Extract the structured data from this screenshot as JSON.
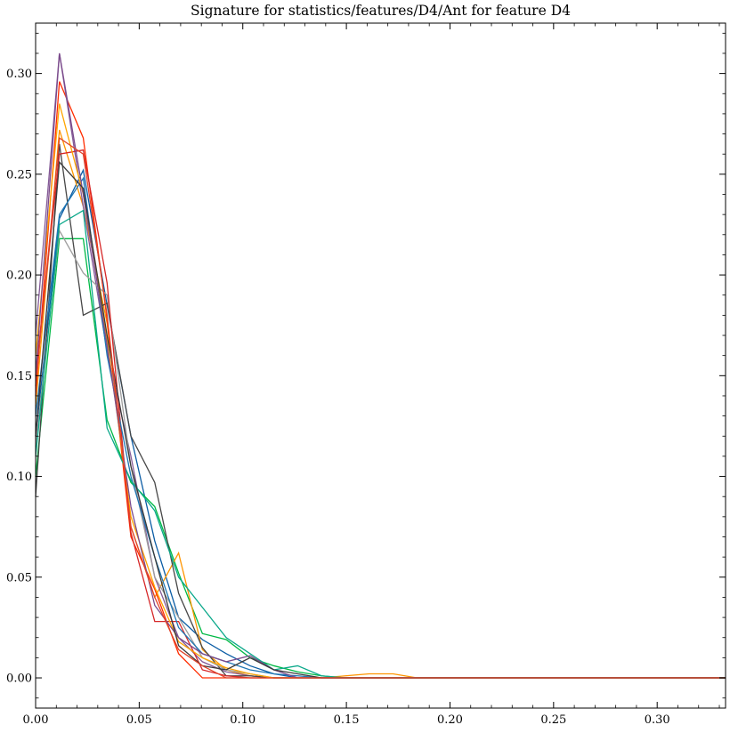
{
  "chart_data": {
    "type": "line",
    "title": "Signature for statistics/features/D4/Ant for feature D4",
    "xlabel": "",
    "ylabel": "",
    "xlim": [
      0.0,
      0.333
    ],
    "ylim": [
      -0.015,
      0.325
    ],
    "grid": false,
    "legend": "none",
    "x_ticks": [
      0.0,
      0.05,
      0.1,
      0.15,
      0.2,
      0.25,
      0.3
    ],
    "x_tick_labels": [
      "0.00",
      "0.05",
      "0.10",
      "0.15",
      "0.20",
      "0.25",
      "0.30"
    ],
    "y_ticks": [
      0.0,
      0.05,
      0.1,
      0.15,
      0.2,
      0.25,
      0.3
    ],
    "y_tick_labels": [
      "0.00",
      "0.05",
      "0.10",
      "0.15",
      "0.20",
      "0.25",
      "0.30"
    ],
    "x": [
      0.0,
      0.0115,
      0.023,
      0.0345,
      0.046,
      0.0575,
      0.069,
      0.0805,
      0.092,
      0.1035,
      0.115,
      0.1265,
      0.138,
      0.1495,
      0.161,
      0.1725,
      0.184,
      0.333
    ],
    "series": [
      {
        "color": "#0c5da5",
        "values": [
          0.12,
          0.228,
          0.252,
          0.185,
          0.12,
          0.068,
          0.03,
          0.019,
          0.012,
          0.006,
          0.002,
          0.0,
          0.0,
          0.0,
          0.0,
          0.0,
          0.0,
          0.0
        ]
      },
      {
        "color": "#00b945",
        "values": [
          0.1,
          0.218,
          0.218,
          0.128,
          0.097,
          0.085,
          0.052,
          0.022,
          0.019,
          0.01,
          0.006,
          0.003,
          0.001,
          0.0,
          0.0,
          0.0,
          0.0,
          0.0
        ]
      },
      {
        "color": "#ff9500",
        "values": [
          0.135,
          0.272,
          0.234,
          0.176,
          0.075,
          0.04,
          0.062,
          0.014,
          0.004,
          0.001,
          0.0,
          0.0,
          0.0,
          0.001,
          0.002,
          0.002,
          0.0,
          0.0
        ]
      },
      {
        "color": "#ff2c00",
        "values": [
          0.14,
          0.296,
          0.268,
          0.178,
          0.07,
          0.044,
          0.012,
          0.0,
          0.0,
          0.0,
          0.0,
          0.0,
          0.0,
          0.0,
          0.0,
          0.0,
          0.0,
          0.0
        ]
      },
      {
        "color": "#845b97",
        "values": [
          0.17,
          0.31,
          0.234,
          0.162,
          0.11,
          0.05,
          0.02,
          0.008,
          0.003,
          0.001,
          0.0,
          0.0,
          0.0,
          0.0,
          0.0,
          0.0,
          0.0,
          0.0
        ]
      },
      {
        "color": "#474747",
        "values": [
          0.09,
          0.265,
          0.18,
          0.186,
          0.12,
          0.097,
          0.042,
          0.015,
          0.001,
          0.001,
          0.0,
          0.0,
          0.0,
          0.0,
          0.0,
          0.0,
          0.0,
          0.0
        ]
      },
      {
        "color": "#9e9e9e",
        "values": [
          0.115,
          0.222,
          0.201,
          0.19,
          0.105,
          0.05,
          0.03,
          0.01,
          0.004,
          0.002,
          0.0,
          0.0,
          0.0,
          0.0,
          0.0,
          0.0,
          0.0,
          0.0
        ]
      },
      {
        "color": "#d62728",
        "values": [
          0.15,
          0.26,
          0.262,
          0.196,
          0.072,
          0.028,
          0.028,
          0.004,
          0.001,
          0.0,
          0.0,
          0.0,
          0.0,
          0.0,
          0.0,
          0.0,
          0.0,
          0.0
        ]
      },
      {
        "color": "#1f77b4",
        "values": [
          0.13,
          0.23,
          0.248,
          0.16,
          0.1,
          0.06,
          0.025,
          0.012,
          0.008,
          0.004,
          0.002,
          0.001,
          0.0,
          0.0,
          0.0,
          0.0,
          0.0,
          0.0
        ]
      },
      {
        "color": "#0aa88a",
        "values": [
          0.11,
          0.225,
          0.232,
          0.124,
          0.098,
          0.083,
          0.05,
          0.035,
          0.02,
          0.012,
          0.004,
          0.006,
          0.001,
          0.0,
          0.0,
          0.0,
          0.0,
          0.0
        ]
      },
      {
        "color": "#ffa500",
        "values": [
          0.16,
          0.285,
          0.24,
          0.168,
          0.08,
          0.045,
          0.018,
          0.01,
          0.005,
          0.002,
          0.0,
          0.0,
          0.0,
          0.0,
          0.0,
          0.0,
          0.0,
          0.0
        ]
      },
      {
        "color": "#7b4b8c",
        "values": [
          0.15,
          0.31,
          0.24,
          0.165,
          0.085,
          0.036,
          0.02,
          0.012,
          0.008,
          0.011,
          0.004,
          0.0,
          0.0,
          0.0,
          0.0,
          0.0,
          0.0,
          0.0
        ]
      },
      {
        "color": "#3a3a3a",
        "values": [
          0.12,
          0.256,
          0.243,
          0.17,
          0.105,
          0.06,
          0.016,
          0.006,
          0.004,
          0.01,
          0.004,
          0.002,
          0.0,
          0.0,
          0.0,
          0.0,
          0.0,
          0.0
        ]
      },
      {
        "color": "#e0442a",
        "values": [
          0.145,
          0.268,
          0.26,
          0.18,
          0.075,
          0.04,
          0.014,
          0.006,
          0.0,
          0.0,
          0.0,
          0.0,
          0.0,
          0.0,
          0.0,
          0.0,
          0.0,
          0.0
        ]
      }
    ]
  }
}
